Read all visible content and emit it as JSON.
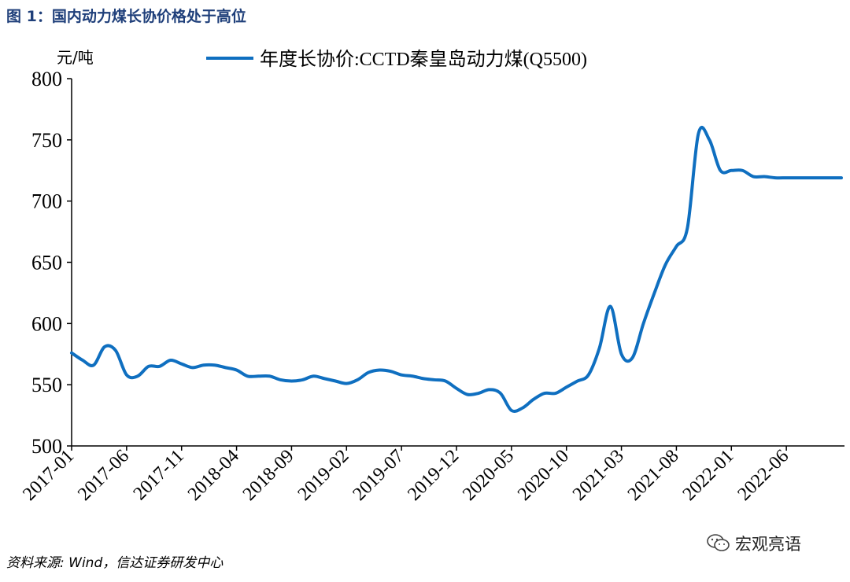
{
  "title": "图 1：国内动力煤长协价格处于高位",
  "source": "资料来源: Wind，信达证券研发中心",
  "watermark": "宏观亮语",
  "colors": {
    "series": "#0f6fc0",
    "title": "#1f3f7a",
    "axis": "#000000"
  },
  "chart_data": {
    "type": "line",
    "y_unit_label": "元/吨",
    "ylim": [
      500,
      800
    ],
    "yticks": [
      500,
      550,
      600,
      650,
      700,
      750,
      800
    ],
    "x_tick_labels": [
      "2017-01",
      "2017-06",
      "2017-11",
      "2018-04",
      "2018-09",
      "2019-02",
      "2019-07",
      "2019-12",
      "2020-05",
      "2020-10",
      "2021-03",
      "2021-08",
      "2022-01",
      "2022-06"
    ],
    "grid": false,
    "legend_position": "top",
    "series": [
      {
        "name": "年度长协价:CCTD秦皇岛动力煤(Q5500)",
        "points": [
          [
            "2017-01",
            576
          ],
          [
            "2017-02",
            570
          ],
          [
            "2017-03",
            566
          ],
          [
            "2017-04",
            581
          ],
          [
            "2017-05",
            578
          ],
          [
            "2017-06",
            558
          ],
          [
            "2017-07",
            557
          ],
          [
            "2017-08",
            565
          ],
          [
            "2017-09",
            565
          ],
          [
            "2017-10",
            570
          ],
          [
            "2017-11",
            567
          ],
          [
            "2017-12",
            564
          ],
          [
            "2018-01",
            566
          ],
          [
            "2018-02",
            566
          ],
          [
            "2018-03",
            564
          ],
          [
            "2018-04",
            562
          ],
          [
            "2018-05",
            557
          ],
          [
            "2018-06",
            557
          ],
          [
            "2018-07",
            557
          ],
          [
            "2018-08",
            554
          ],
          [
            "2018-09",
            553
          ],
          [
            "2018-10",
            554
          ],
          [
            "2018-11",
            557
          ],
          [
            "2018-12",
            555
          ],
          [
            "2019-01",
            553
          ],
          [
            "2019-02",
            551
          ],
          [
            "2019-03",
            554
          ],
          [
            "2019-04",
            560
          ],
          [
            "2019-05",
            562
          ],
          [
            "2019-06",
            561
          ],
          [
            "2019-07",
            558
          ],
          [
            "2019-08",
            557
          ],
          [
            "2019-09",
            555
          ],
          [
            "2019-10",
            554
          ],
          [
            "2019-11",
            553
          ],
          [
            "2019-12",
            547
          ],
          [
            "2019-13",
            542
          ],
          [
            "2020-02",
            543
          ],
          [
            "2020-03",
            546
          ],
          [
            "2020-04",
            543
          ],
          [
            "2020-05",
            529
          ],
          [
            "2020-06",
            531
          ],
          [
            "2020-07",
            538
          ],
          [
            "2020-08",
            543
          ],
          [
            "2020-09",
            543
          ],
          [
            "2020-10",
            548
          ],
          [
            "2020-11",
            553
          ],
          [
            "2020-12",
            558
          ],
          [
            "2021-01",
            580
          ],
          [
            "2021-02",
            614
          ],
          [
            "2021-03",
            575
          ],
          [
            "2021-04",
            572
          ],
          [
            "2021-05",
            600
          ],
          [
            "2021-06",
            625
          ],
          [
            "2021-07",
            648
          ],
          [
            "2021-08",
            663
          ],
          [
            "2021-09",
            678
          ],
          [
            "2021-10",
            755
          ],
          [
            "2021-11",
            750
          ],
          [
            "2021-12",
            725
          ],
          [
            "2022-01",
            725
          ],
          [
            "2022-02",
            725
          ],
          [
            "2022-03",
            720
          ],
          [
            "2022-04",
            720
          ],
          [
            "2022-05",
            719
          ],
          [
            "2022-06",
            719
          ],
          [
            "2022-07",
            719
          ],
          [
            "2022-08",
            719
          ],
          [
            "2022-09",
            719
          ],
          [
            "2022-10",
            719
          ],
          [
            "2022-11",
            719
          ]
        ]
      }
    ]
  }
}
